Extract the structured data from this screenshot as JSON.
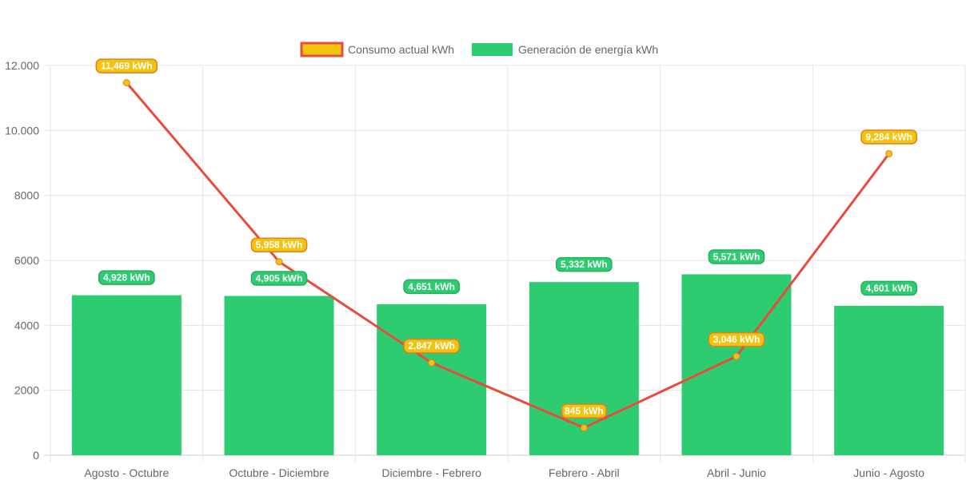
{
  "chart_data": {
    "type": "bar",
    "categories": [
      "Agosto - Octubre",
      "Octubre - Diciembre",
      "Diciembre - Febrero",
      "Febrero - Abril",
      "Abril - Junio",
      "Junio - Agosto"
    ],
    "series": [
      {
        "name": "Consumo actual kWh",
        "kind": "line",
        "values": [
          11469,
          5958,
          2847,
          845,
          3046,
          9284
        ],
        "labels": [
          "11,469 kWh",
          "5,958 kWh",
          "2,847 kWh",
          "845 kWh",
          "3,046 kWh",
          "9,284 kWh"
        ],
        "line_color": "#e74c3c",
        "point_color": "#f1c40f"
      },
      {
        "name": "Generación de energía kWh",
        "kind": "bar",
        "values": [
          4928,
          4905,
          4651,
          5332,
          5571,
          4601
        ],
        "labels": [
          "4,928 kWh",
          "4,905 kWh",
          "4,651 kWh",
          "5,332 kWh",
          "5,571 kWh",
          "4,601 kWh"
        ],
        "bar_color": "#2ecc71"
      }
    ],
    "yticks": [
      0,
      2000,
      4000,
      6000,
      8000,
      10000,
      12000
    ],
    "ytick_labels": [
      "0",
      "2000",
      "4000",
      "6000",
      "8000",
      "10.000",
      "12.000"
    ],
    "ylim": [
      0,
      12000
    ],
    "legend_position": "top-center",
    "grid": true,
    "title": "",
    "xlabel": "",
    "ylabel": ""
  }
}
